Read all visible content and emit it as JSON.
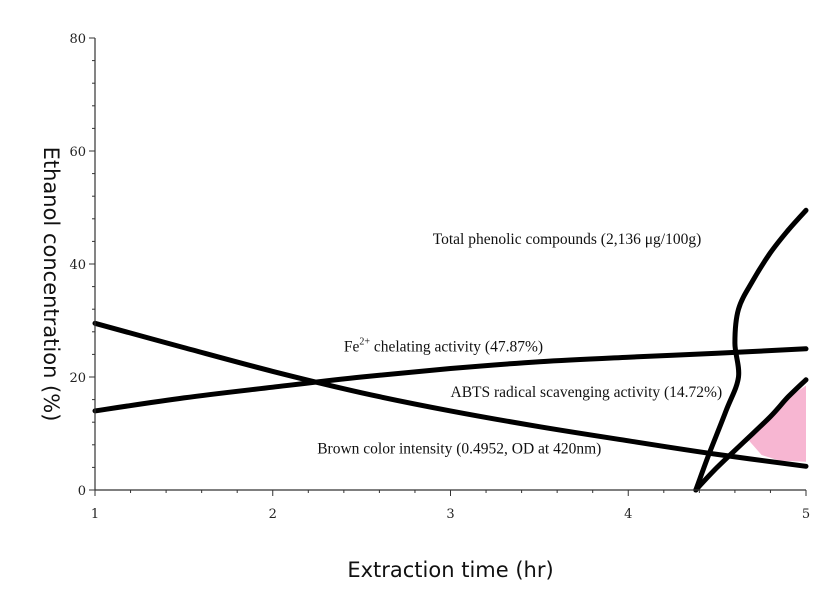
{
  "chart_data": {
    "type": "line",
    "title": "",
    "xlabel": "Extraction time (hr)",
    "ylabel": "Ethanol concentration (%)",
    "xlim": [
      1,
      5
    ],
    "ylim": [
      0,
      80
    ],
    "x_ticks": [
      "1",
      "2",
      "3",
      "4",
      "5"
    ],
    "y_ticks": [
      "0",
      "20",
      "40",
      "60",
      "80"
    ],
    "grid": false,
    "legend": "none",
    "series": [
      {
        "name": "Total phenolic compounds (2,136 μg/100g)",
        "points": [
          [
            4.38,
            0
          ],
          [
            4.45,
            6
          ],
          [
            4.55,
            14
          ],
          [
            4.62,
            20
          ],
          [
            4.6,
            26
          ],
          [
            4.62,
            32
          ],
          [
            4.7,
            37
          ],
          [
            4.8,
            42
          ],
          [
            4.9,
            46
          ],
          [
            5.0,
            49.5
          ]
        ]
      },
      {
        "name": "Fe²⁺ chelating activity (47.87%)",
        "points": [
          [
            1.0,
            14
          ],
          [
            1.5,
            16.3
          ],
          [
            2.0,
            18.2
          ],
          [
            2.5,
            20
          ],
          [
            3.0,
            21.5
          ],
          [
            3.5,
            22.7
          ],
          [
            4.0,
            23.5
          ],
          [
            4.5,
            24.2
          ],
          [
            5.0,
            25
          ]
        ]
      },
      {
        "name": "ABTS radical scavenging activity (14.72%)",
        "points": [
          [
            4.38,
            0
          ],
          [
            4.5,
            4
          ],
          [
            4.65,
            8.5
          ],
          [
            4.8,
            13
          ],
          [
            4.9,
            16.5
          ],
          [
            5.0,
            19.5
          ]
        ]
      },
      {
        "name": "Brown color intensity (0.4952, OD at 420nm)",
        "points": [
          [
            1.0,
            29.5
          ],
          [
            1.5,
            25.2
          ],
          [
            2.0,
            21
          ],
          [
            2.5,
            17.2
          ],
          [
            3.0,
            14
          ],
          [
            3.5,
            11.2
          ],
          [
            4.0,
            8.7
          ],
          [
            4.5,
            6.3
          ],
          [
            5.0,
            4.2
          ]
        ]
      }
    ],
    "annotations": [
      {
        "text": "Total phenolic compounds (2,136 μg/100g)",
        "x": 2.9,
        "y": 43.5
      },
      {
        "text": "Fe",
        "sup": "2+",
        "rest": " chelating activity (47.87%)",
        "x": 2.4,
        "y": 24.5
      },
      {
        "text": "ABTS radical scavenging activity (14.72%)",
        "x": 3.0,
        "y": 16.5
      },
      {
        "text": "Brown color intensity (0.4952, OD at 420nm)",
        "x": 2.25,
        "y": 6.5
      }
    ],
    "highlight_region": {
      "color": "#f7b6d2",
      "points": [
        [
          4.68,
          8.7
        ],
        [
          4.8,
          13
        ],
        [
          4.9,
          16.3
        ],
        [
          5.0,
          18.5
        ],
        [
          5.0,
          5.0
        ],
        [
          4.85,
          5.2
        ],
        [
          4.75,
          6.2
        ]
      ]
    },
    "line_color": "#000000"
  }
}
